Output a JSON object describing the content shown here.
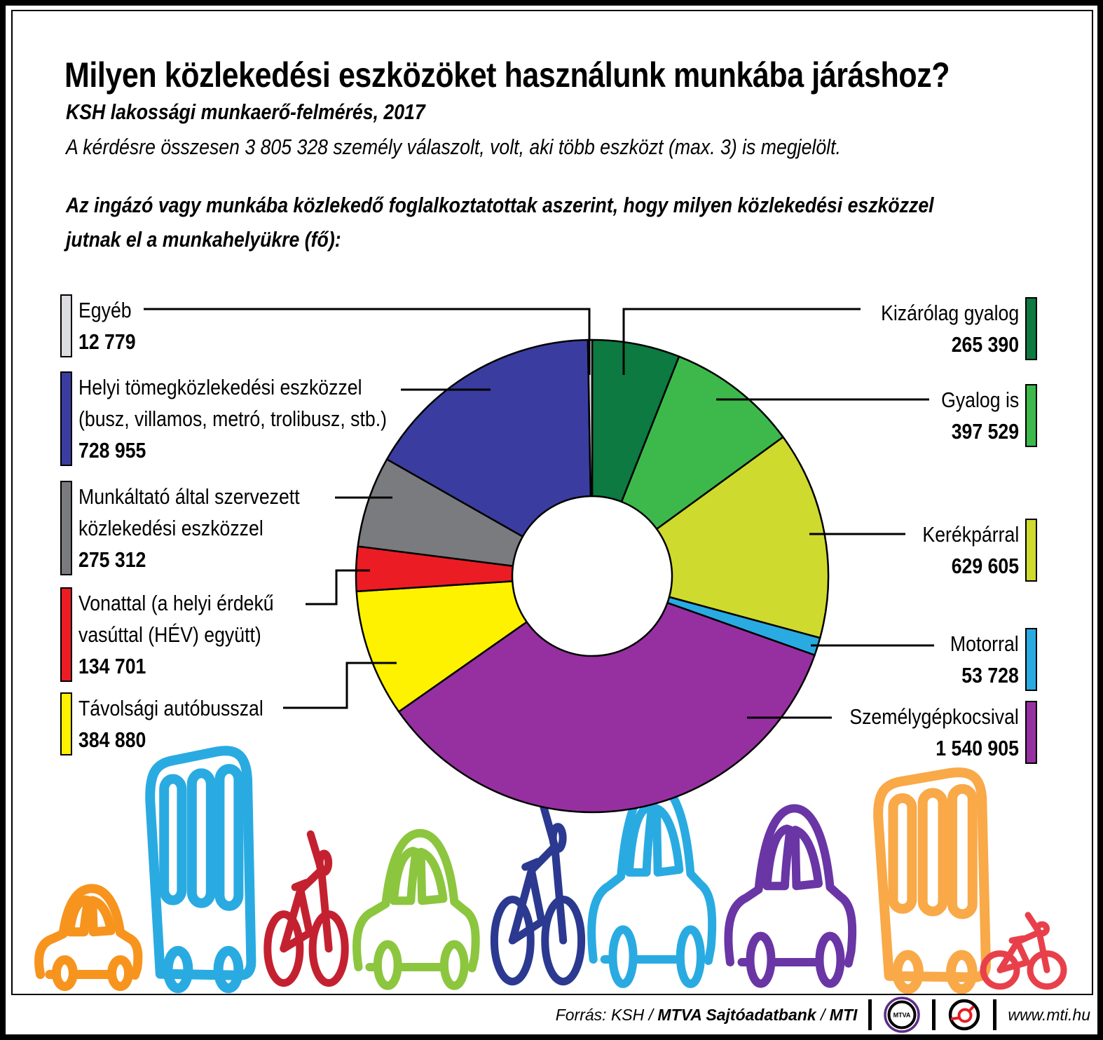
{
  "header": {
    "title": "Milyen közlekedési eszközöket használunk munkába járáshoz?",
    "subtitle": "KSH  lakossági munkaerő-felmérés, 2017",
    "note": "A  kérdésre összesen 3 805 328 személy válaszolt, volt, aki több eszközt (max. 3) is megjelölt.",
    "lead": "Az ingázó vagy munkába közlekedő foglalkoztatottak aszerint, hogy milyen közlekedési eszközzel\njutnak el a munkahelyükre (fő):"
  },
  "chart_data": {
    "type": "pie",
    "donut": true,
    "start_angle_deg": 0,
    "direction": "clockwise",
    "title": "Az ingázó vagy munkába közlekedő foglalkoztatottak aszerint, hogy milyen közlekedési eszközzel jutnak el a munkahelyükre (fő)",
    "categories": [
      "Kizárólag gyalog",
      "Gyalog is",
      "Kerékpárral",
      "Motorral",
      "Személygépkocsival",
      "Távolsági autóbusszal",
      "Vonattal (a helyi érdekű vasúttal (HÉV) együtt)",
      "Munkáltató által szervezett közlekedési eszközzel",
      "Helyi tömegközlekedési eszközzel (busz, villamos, metró, trolibusz, stb.)",
      "Egyéb"
    ],
    "values": [
      265390,
      397529,
      629605,
      53728,
      1540905,
      384880,
      134701,
      275312,
      728955,
      12779
    ],
    "colors": [
      "#0c7a41",
      "#3db94b",
      "#cfda2e",
      "#29abe2",
      "#9630a0",
      "#fff200",
      "#ec1c24",
      "#7a7b7e",
      "#3a3d9f",
      "#dcdde0"
    ]
  },
  "labels_left": [
    {
      "line1": "Egyéb",
      "value": "12 779",
      "color": "#dcdde0"
    },
    {
      "line1": "Helyi tömegközlekedési eszközzel",
      "line2": "(busz, villamos, metró, trolibusz, stb.)",
      "value": "728 955",
      "color": "#3a3d9f"
    },
    {
      "line1": "Munkáltató által szervezett",
      "line2": "közlekedési eszközzel",
      "value": "275 312",
      "color": "#7a7b7e"
    },
    {
      "line1": "Vonattal (a helyi érdekű",
      "line2": "vasúttal (HÉV) együtt)",
      "value": "134 701",
      "color": "#ec1c24"
    },
    {
      "line1": "Távolsági autóbusszal",
      "value": "384 880",
      "color": "#fff200"
    }
  ],
  "labels_right": [
    {
      "line1": "Kizárólag gyalog",
      "value": "265 390",
      "color": "#0c7a41"
    },
    {
      "line1": "Gyalog is",
      "value": "397 529",
      "color": "#3db94b"
    },
    {
      "line1": "Kerékpárral",
      "value": "629 605",
      "color": "#cfda2e"
    },
    {
      "line1": "Motorral",
      "value": "53 728",
      "color": "#29abe2"
    },
    {
      "line1": "Személygépkocsival",
      "value": "1 540 905",
      "color": "#9630a0"
    }
  ],
  "vehicles": [
    {
      "type": "car",
      "color": "#f7941e"
    },
    {
      "type": "bus",
      "color": "#29abe2"
    },
    {
      "type": "bike",
      "color": "#c42130"
    },
    {
      "type": "car",
      "color": "#8cc63f"
    },
    {
      "type": "bike",
      "color": "#2b3990"
    },
    {
      "type": "car",
      "color": "#29abe2"
    },
    {
      "type": "car",
      "color": "#6a35a5"
    },
    {
      "type": "bus",
      "color": "#f9a947"
    },
    {
      "type": "bike",
      "color": "#e8404b"
    }
  ],
  "footer": {
    "source_prefix": "Forrás: KSH / ",
    "source_bold": "MTVA Sajtóadatbank",
    "source_mid": " / ",
    "source_mti": "MTI",
    "mtva_logo_text": "MTVA",
    "url": "www.mti.hu",
    "mtva_ring_color": "#5d2c87",
    "mti_red_color": "#e31e24"
  }
}
